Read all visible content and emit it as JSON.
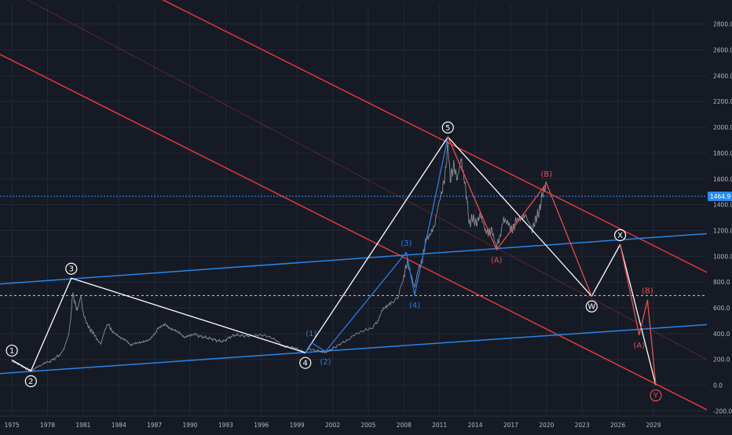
{
  "colors": {
    "background": "#161a25",
    "grid": "#232838",
    "price": "#9aa0ad",
    "impulse": "#ffffff",
    "blue_wave": "#2a7de1",
    "red_wave": "#e2504c",
    "channel_red": "#ef3b35",
    "channel_blue": "#2a8bef",
    "current_price_line": "#2a8bef",
    "axis_text": "#b4b8c2",
    "price_tag_bg": "#2a8bef"
  },
  "chart_data": {
    "type": "line",
    "x_axis": {
      "type": "time",
      "range": [
        1974.0,
        2033.5
      ],
      "ticks": [
        "1975",
        "1978",
        "1981",
        "1984",
        "1987",
        "1990",
        "1993",
        "1996",
        "1999",
        "2002",
        "2005",
        "2008",
        "2011",
        "2014",
        "2017",
        "2020",
        "2023",
        "2026",
        "2029"
      ]
    },
    "y_axis": {
      "range": [
        -240,
        2950
      ],
      "ticks": [
        "-200.0",
        "0.0",
        "200.0",
        "400.0",
        "600.0",
        "800.0",
        "1000.0",
        "1200.0",
        "1400.0",
        "1600.0",
        "1800.0",
        "2000.0",
        "2200.0",
        "2400.0",
        "2600.0",
        "2800.0"
      ],
      "position": "right"
    },
    "grid": true,
    "current_price": {
      "value": 1464.9,
      "label": "1464.9"
    },
    "reference_line": {
      "value": 695
    },
    "price_series": [
      [
        1975.0,
        185
      ],
      [
        1975.6,
        160
      ],
      [
        1976.0,
        135
      ],
      [
        1976.6,
        115
      ],
      [
        1977.0,
        135
      ],
      [
        1977.6,
        160
      ],
      [
        1978.0,
        175
      ],
      [
        1978.5,
        200
      ],
      [
        1979.0,
        235
      ],
      [
        1979.4,
        290
      ],
      [
        1979.8,
        400
      ],
      [
        1980.0,
        560
      ],
      [
        1980.1,
        720
      ],
      [
        1980.3,
        640
      ],
      [
        1980.5,
        580
      ],
      [
        1980.8,
        690
      ],
      [
        1981.0,
        560
      ],
      [
        1981.3,
        480
      ],
      [
        1981.6,
        430
      ],
      [
        1981.9,
        400
      ],
      [
        1982.2,
        350
      ],
      [
        1982.5,
        320
      ],
      [
        1982.8,
        420
      ],
      [
        1983.1,
        480
      ],
      [
        1983.4,
        420
      ],
      [
        1983.8,
        400
      ],
      [
        1984.2,
        370
      ],
      [
        1984.6,
        350
      ],
      [
        1985.0,
        305
      ],
      [
        1985.4,
        320
      ],
      [
        1985.8,
        330
      ],
      [
        1986.2,
        345
      ],
      [
        1986.6,
        360
      ],
      [
        1987.0,
        400
      ],
      [
        1987.5,
        460
      ],
      [
        1987.9,
        480
      ],
      [
        1988.3,
        440
      ],
      [
        1988.7,
        420
      ],
      [
        1989.1,
        400
      ],
      [
        1989.5,
        370
      ],
      [
        1989.9,
        390
      ],
      [
        1990.3,
        400
      ],
      [
        1990.8,
        380
      ],
      [
        1991.3,
        370
      ],
      [
        1991.8,
        360
      ],
      [
        1992.3,
        345
      ],
      [
        1992.8,
        340
      ],
      [
        1993.3,
        370
      ],
      [
        1993.8,
        390
      ],
      [
        1994.3,
        385
      ],
      [
        1994.8,
        380
      ],
      [
        1995.3,
        385
      ],
      [
        1995.8,
        390
      ],
      [
        1996.3,
        385
      ],
      [
        1996.8,
        370
      ],
      [
        1997.3,
        345
      ],
      [
        1997.8,
        300
      ],
      [
        1998.3,
        295
      ],
      [
        1998.8,
        290
      ],
      [
        1999.3,
        270
      ],
      [
        1999.7,
        255
      ],
      [
        2000.0,
        285
      ],
      [
        2000.5,
        270
      ],
      [
        2001.0,
        265
      ],
      [
        2001.4,
        260
      ],
      [
        2001.8,
        275
      ],
      [
        2002.3,
        300
      ],
      [
        2002.8,
        330
      ],
      [
        2003.3,
        350
      ],
      [
        2003.8,
        390
      ],
      [
        2004.3,
        410
      ],
      [
        2004.8,
        430
      ],
      [
        2005.3,
        440
      ],
      [
        2005.8,
        500
      ],
      [
        2006.2,
        600
      ],
      [
        2006.6,
        620
      ],
      [
        2007.0,
        640
      ],
      [
        2007.5,
        680
      ],
      [
        2008.0,
        850
      ],
      [
        2008.3,
        960
      ],
      [
        2008.6,
        850
      ],
      [
        2008.9,
        760
      ],
      [
        2009.2,
        900
      ],
      [
        2009.5,
        950
      ],
      [
        2009.8,
        1100
      ],
      [
        2010.2,
        1150
      ],
      [
        2010.6,
        1250
      ],
      [
        2010.9,
        1400
      ],
      [
        2011.2,
        1500
      ],
      [
        2011.5,
        1650
      ],
      [
        2011.7,
        1870
      ],
      [
        2011.9,
        1600
      ],
      [
        2012.2,
        1700
      ],
      [
        2012.5,
        1600
      ],
      [
        2012.8,
        1750
      ],
      [
        2013.0,
        1650
      ],
      [
        2013.3,
        1450
      ],
      [
        2013.5,
        1250
      ],
      [
        2013.8,
        1300
      ],
      [
        2014.1,
        1250
      ],
      [
        2014.4,
        1320
      ],
      [
        2014.8,
        1200
      ],
      [
        2015.1,
        1180
      ],
      [
        2015.4,
        1200
      ],
      [
        2015.8,
        1080
      ],
      [
        2016.1,
        1150
      ],
      [
        2016.4,
        1300
      ],
      [
        2016.8,
        1250
      ],
      [
        2017.1,
        1200
      ],
      [
        2017.4,
        1260
      ],
      [
        2017.8,
        1280
      ],
      [
        2018.2,
        1330
      ],
      [
        2018.5,
        1260
      ],
      [
        2018.8,
        1200
      ],
      [
        2019.1,
        1290
      ],
      [
        2019.4,
        1350
      ],
      [
        2019.7,
        1500
      ],
      [
        2020.0,
        1560
      ]
    ],
    "series": [
      {
        "color": "#ffffff",
        "points": [
          [
            1975.0,
            195
          ],
          [
            1976.6,
            110
          ],
          [
            1980.0,
            830
          ],
          [
            1999.7,
            252
          ],
          [
            2011.7,
            1925
          ],
          [
            2020.2,
            1060
          ],
          [
            2023.8,
            690
          ],
          [
            2026.2,
            1090
          ],
          [
            2029.2,
            0
          ]
        ]
      },
      {
        "color": "#2a7de1",
        "points": [
          [
            1999.7,
            252
          ],
          [
            2000.2,
            330
          ],
          [
            2001.4,
            262
          ],
          [
            2008.2,
            1030
          ],
          [
            2008.9,
            700
          ],
          [
            2011.7,
            1925
          ]
        ]
      },
      {
        "color": "#e2504c",
        "points": [
          [
            2011.7,
            1925
          ],
          [
            2015.8,
            1050
          ],
          [
            2020.0,
            1565
          ],
          [
            2023.8,
            690
          ]
        ]
      },
      {
        "color": "#e2504c",
        "points": [
          [
            2026.2,
            1090
          ],
          [
            2027.8,
            390
          ],
          [
            2028.5,
            660
          ],
          [
            2029.2,
            0
          ]
        ]
      }
    ],
    "channel_lines": [
      {
        "color": "#ef3b35",
        "points": [
          [
            1974.0,
            3620
          ],
          [
            2033.5,
            875
          ]
        ]
      },
      {
        "color": "#ef3b35",
        "points": [
          [
            1974.0,
            2565
          ],
          [
            2033.5,
            -190
          ]
        ]
      },
      {
        "color": "#ef3b35",
        "dim": true,
        "points": [
          [
            1974.0,
            3100
          ],
          [
            2033.5,
            200
          ]
        ]
      },
      {
        "color": "#2a8bef",
        "points": [
          [
            1974.0,
            785
          ],
          [
            2033.5,
            1175
          ]
        ]
      },
      {
        "color": "#2a8bef",
        "points": [
          [
            1974.0,
            90
          ],
          [
            2033.5,
            470
          ]
        ]
      }
    ],
    "wave_labels": [
      {
        "text": "1",
        "x": 1975.0,
        "y": 195,
        "style": "circle-white",
        "pos": "above"
      },
      {
        "text": "2",
        "x": 1976.6,
        "y": 110,
        "style": "circle-white",
        "pos": "below"
      },
      {
        "text": "3",
        "x": 1980.0,
        "y": 830,
        "style": "circle-white",
        "pos": "above"
      },
      {
        "text": "4",
        "x": 1999.7,
        "y": 252,
        "style": "circle-white",
        "pos": "below"
      },
      {
        "text": "5",
        "x": 2011.7,
        "y": 1925,
        "style": "circle-white",
        "pos": "above"
      },
      {
        "text": "(1)",
        "x": 2000.2,
        "y": 330,
        "style": "blue",
        "pos": "above"
      },
      {
        "text": "(2)",
        "x": 2001.4,
        "y": 262,
        "style": "blue",
        "pos": "below"
      },
      {
        "text": "(3)",
        "x": 2008.2,
        "y": 1030,
        "style": "blue",
        "pos": "above"
      },
      {
        "text": "(4)",
        "x": 2008.9,
        "y": 700,
        "style": "blue",
        "pos": "below"
      },
      {
        "text": "(A)",
        "x": 2015.8,
        "y": 1050,
        "style": "red",
        "pos": "below"
      },
      {
        "text": "(B)",
        "x": 2020.0,
        "y": 1565,
        "style": "red",
        "pos": "above"
      },
      {
        "text": "W",
        "x": 2023.8,
        "y": 690,
        "style": "circle-white",
        "pos": "below"
      },
      {
        "text": "X",
        "x": 2026.2,
        "y": 1090,
        "style": "circle-white",
        "pos": "above"
      },
      {
        "text": "(A)",
        "x": 2027.8,
        "y": 390,
        "style": "red",
        "pos": "below"
      },
      {
        "text": "(B)",
        "x": 2028.5,
        "y": 660,
        "style": "red",
        "pos": "above"
      },
      {
        "text": "Y",
        "x": 2029.2,
        "y": 0,
        "style": "circle-red",
        "pos": "below"
      }
    ]
  }
}
